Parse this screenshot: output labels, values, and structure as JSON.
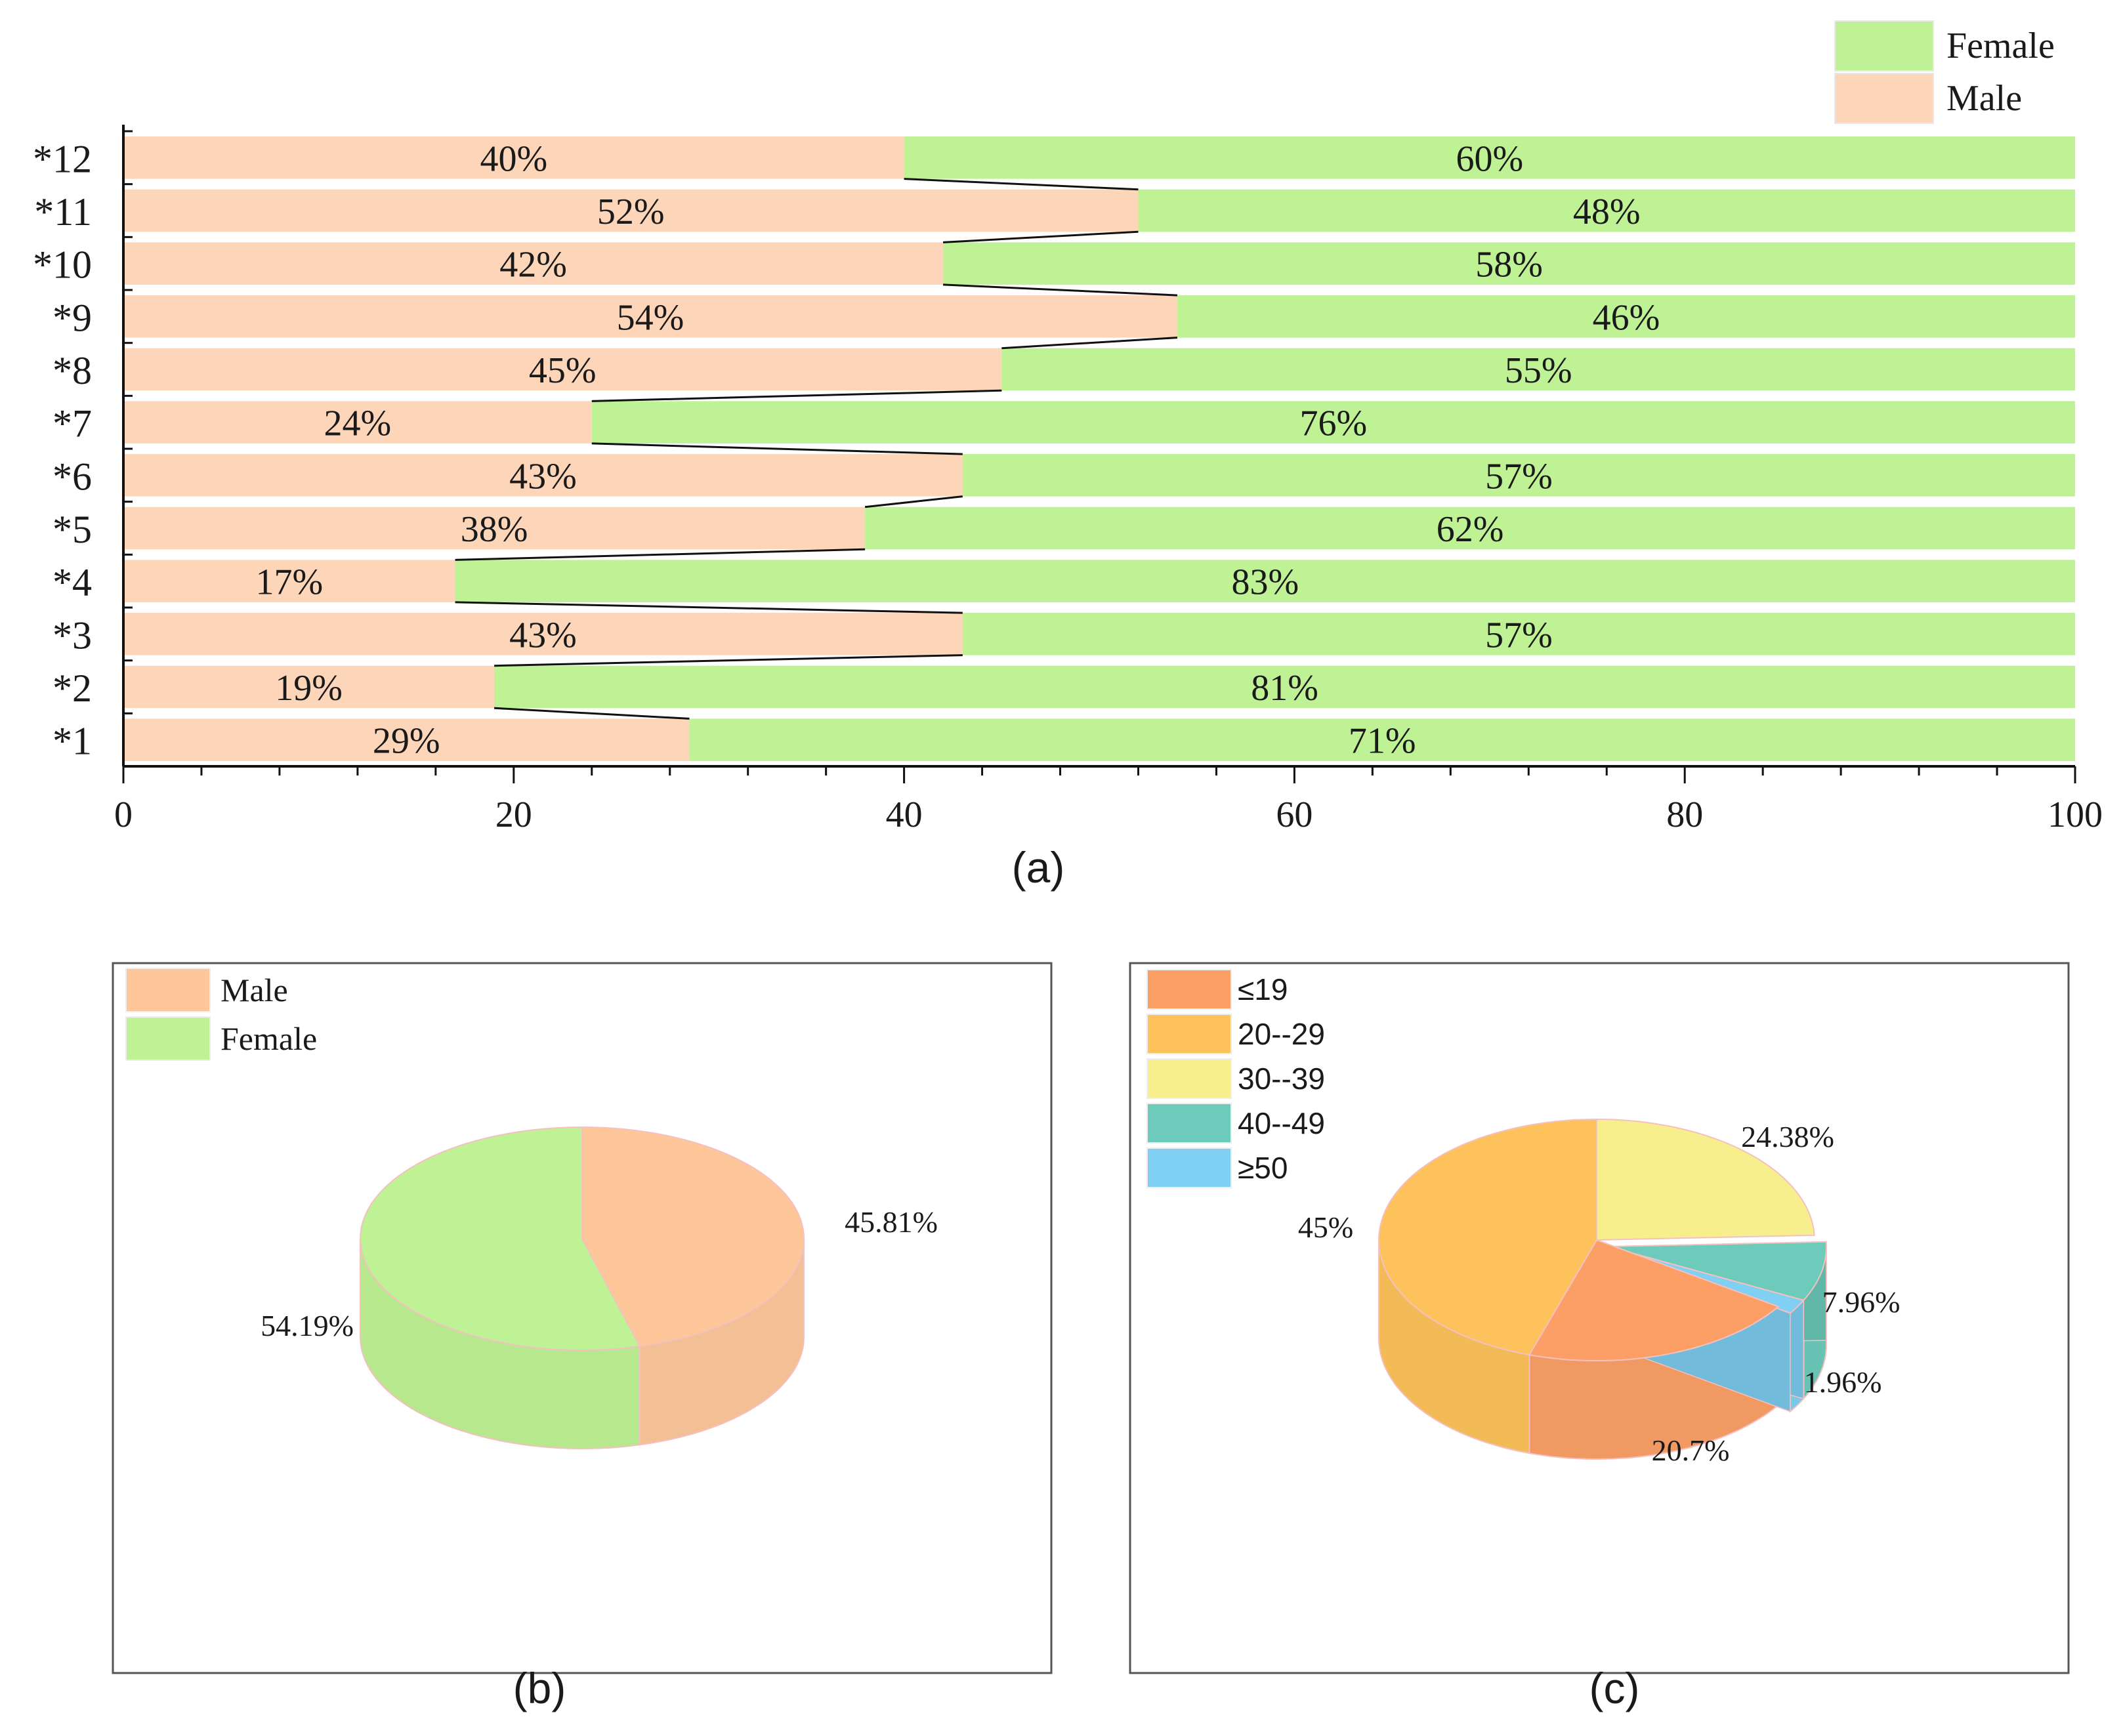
{
  "chart_data": [
    {
      "panel": "a",
      "type": "bar",
      "orientation": "horizontal",
      "stacked": true,
      "caption": "(a)",
      "categories": [
        "*1",
        "*2",
        "*3",
        "*4",
        "*5",
        "*6",
        "*7",
        "*8",
        "*9",
        "*10",
        "*11",
        "*12"
      ],
      "series": [
        {
          "name": "Male",
          "color": "#fdd5b8",
          "values": [
            29,
            19,
            43,
            17,
            38,
            43,
            24,
            45,
            54,
            42,
            52,
            40
          ],
          "labels": [
            "29%",
            "19%",
            "43%",
            "17%",
            "38%",
            "43%",
            "24%",
            "45%",
            "54%",
            "42%",
            "52%",
            "40%"
          ]
        },
        {
          "name": "Female",
          "color": "#bff294",
          "values": [
            71,
            81,
            57,
            83,
            62,
            57,
            76,
            55,
            46,
            58,
            48,
            60
          ],
          "labels": [
            "71%",
            "81%",
            "57%",
            "83%",
            "62%",
            "57%",
            "76%",
            "55%",
            "46%",
            "58%",
            "48%",
            "60%"
          ]
        }
      ],
      "legend_order": [
        "Female",
        "Male"
      ],
      "xlim": [
        0,
        100
      ],
      "xticks": [
        0,
        20,
        40,
        60,
        80,
        100
      ],
      "xtick_labels": [
        "0",
        "20",
        "40",
        "60",
        "80",
        "100"
      ]
    },
    {
      "panel": "b",
      "type": "pie",
      "style": "3d",
      "caption": "(b)",
      "slices": [
        {
          "name": "Male",
          "value": 45.81,
          "label": "45.81%",
          "color": "#fdc79a"
        },
        {
          "name": "Female",
          "value": 54.19,
          "label": "54.19%",
          "color": "#bff294"
        }
      ],
      "legend_order": [
        "Male",
        "Female"
      ]
    },
    {
      "panel": "c",
      "type": "pie",
      "style": "3d",
      "caption": "(c)",
      "slices": [
        {
          "name": "30--39",
          "value": 24.38,
          "label": "24.38%",
          "color": "#f7ef8d"
        },
        {
          "name": "40--49",
          "value": 7.96,
          "label": "7.96%",
          "color": "#6ccbbb"
        },
        {
          "name": "≥50",
          "value": 1.96,
          "label": "1.96%",
          "color": "#7fd0f2"
        },
        {
          "name": "≤19",
          "value": 20.7,
          "label": "20.7%",
          "color": "#fb9f66"
        },
        {
          "name": "20--29",
          "value": 45,
          "label": "45%",
          "color": "#fdc25c"
        }
      ],
      "legend_order": [
        "≤19",
        "20--29",
        "30--39",
        "40--49",
        "≥50"
      ]
    }
  ]
}
